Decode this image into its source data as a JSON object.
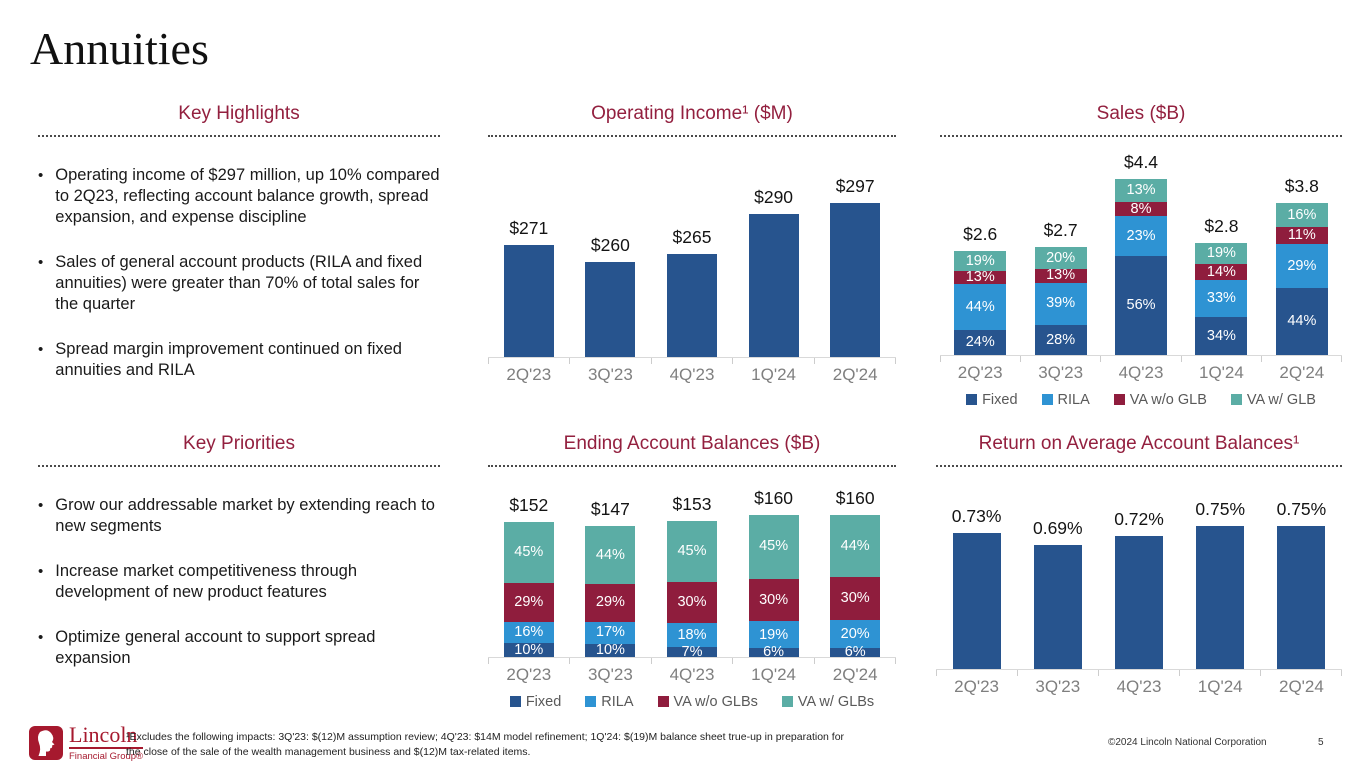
{
  "slide": {
    "title": "Annuities"
  },
  "sections": {
    "key_highlights": {
      "title": "Key Highlights",
      "bullets": [
        "Operating income of $297 million, up 10% compared to 2Q23, reflecting account balance growth, spread expansion, and expense discipline",
        "Sales of general account products (RILA and fixed annuities) were greater than 70% of total sales for the quarter",
        "Spread margin improvement continued on fixed annuities and RILA"
      ]
    },
    "key_priorities": {
      "title": "Key Priorities",
      "bullets": [
        "Grow our addressable market by extending reach to new segments",
        "Increase market competitiveness through development of new product features",
        "Optimize general account to support spread expansion"
      ]
    }
  },
  "colors": {
    "heading_maroon": "#93203F",
    "fixed_navy": "#27548E",
    "rila_blue": "#2E93D3",
    "va_wo_glb_maroon": "#8F1D3D",
    "va_w_glb_teal": "#5BADA5",
    "lincoln_red": "#A6192E",
    "axis_gray": "#D9D9D9",
    "category_label_gray": "#7F7F7F"
  },
  "chart_data": [
    {
      "id": "operating_income",
      "type": "bar",
      "title": "Operating Income¹ ($M)",
      "categories": [
        "2Q'23",
        "3Q'23",
        "4Q'23",
        "1Q'24",
        "2Q'24"
      ],
      "values": [
        271,
        260,
        265,
        290,
        297
      ],
      "labels": [
        "$271",
        "$260",
        "$265",
        "$290",
        "$297"
      ],
      "ylim": [
        200,
        320
      ],
      "bar_color": "#27548E",
      "grid": false,
      "legend": false
    },
    {
      "id": "sales",
      "type": "stacked-bar",
      "title": "Sales ($B)",
      "categories": [
        "2Q'23",
        "3Q'23",
        "4Q'23",
        "1Q'24",
        "2Q'24"
      ],
      "totals": [
        2.6,
        2.7,
        4.4,
        2.8,
        3.8
      ],
      "total_labels": [
        "$2.6",
        "$2.7",
        "$4.4",
        "$2.8",
        "$3.8"
      ],
      "ylim": [
        0,
        5
      ],
      "series": [
        {
          "name": "Fixed",
          "color": "#27548E",
          "values": [
            24,
            28,
            56,
            34,
            44
          ]
        },
        {
          "name": "RILA",
          "color": "#2E93D3",
          "values": [
            44,
            39,
            23,
            33,
            29
          ]
        },
        {
          "name": "VA w/o GLB",
          "color": "#8F1D3D",
          "values": [
            13,
            13,
            8,
            14,
            11
          ]
        },
        {
          "name": "VA w/ GLB",
          "color": "#5BADA5",
          "values": [
            19,
            20,
            13,
            19,
            16
          ]
        }
      ],
      "unit": "%",
      "grid": false,
      "legend": true,
      "legend_position": "bottom"
    },
    {
      "id": "ending_account_balances",
      "type": "stacked-bar",
      "title": "Ending Account Balances ($B)",
      "categories": [
        "2Q'23",
        "3Q'23",
        "4Q'23",
        "1Q'24",
        "2Q'24"
      ],
      "totals": [
        152,
        147,
        153,
        160,
        160
      ],
      "total_labels": [
        "$152",
        "$147",
        "$153",
        "$160",
        "$160"
      ],
      "ylim": [
        0,
        180
      ],
      "series": [
        {
          "name": "Fixed",
          "color": "#27548E",
          "values": [
            10,
            10,
            7,
            6,
            6
          ]
        },
        {
          "name": "RILA",
          "color": "#2E93D3",
          "values": [
            16,
            17,
            18,
            19,
            20
          ]
        },
        {
          "name": "VA w/o GLBs",
          "color": "#8F1D3D",
          "values": [
            29,
            29,
            30,
            30,
            30
          ]
        },
        {
          "name": "VA w/ GLBs",
          "color": "#5BADA5",
          "values": [
            45,
            44,
            45,
            45,
            44
          ]
        }
      ],
      "unit": "%",
      "grid": false,
      "legend": true,
      "legend_position": "bottom"
    },
    {
      "id": "return_on_avg_balances",
      "type": "bar",
      "title": "Return on Average Account Balances¹",
      "categories": [
        "2Q'23",
        "3Q'23",
        "4Q'23",
        "1Q'24",
        "2Q'24"
      ],
      "values": [
        0.73,
        0.69,
        0.72,
        0.75,
        0.75
      ],
      "labels": [
        "0.73%",
        "0.69%",
        "0.72%",
        "0.75%",
        "0.75%"
      ],
      "ylim": [
        0.3,
        0.82
      ],
      "bar_color": "#27548E",
      "grid": false,
      "legend": false
    }
  ],
  "footer": {
    "logo_name": "Lincoln",
    "logo_sub": "Financial Group®",
    "footnote": "¹Excludes the following impacts: 3Q'23: $(12)M assumption review;  4Q'23: $14M model refinement; 1Q'24: $(19)M balance sheet true-up in preparation for the close of the sale of the wealth management business and $(12)M tax-related items.",
    "copyright": "©2024 Lincoln National Corporation",
    "page_number": "5"
  }
}
